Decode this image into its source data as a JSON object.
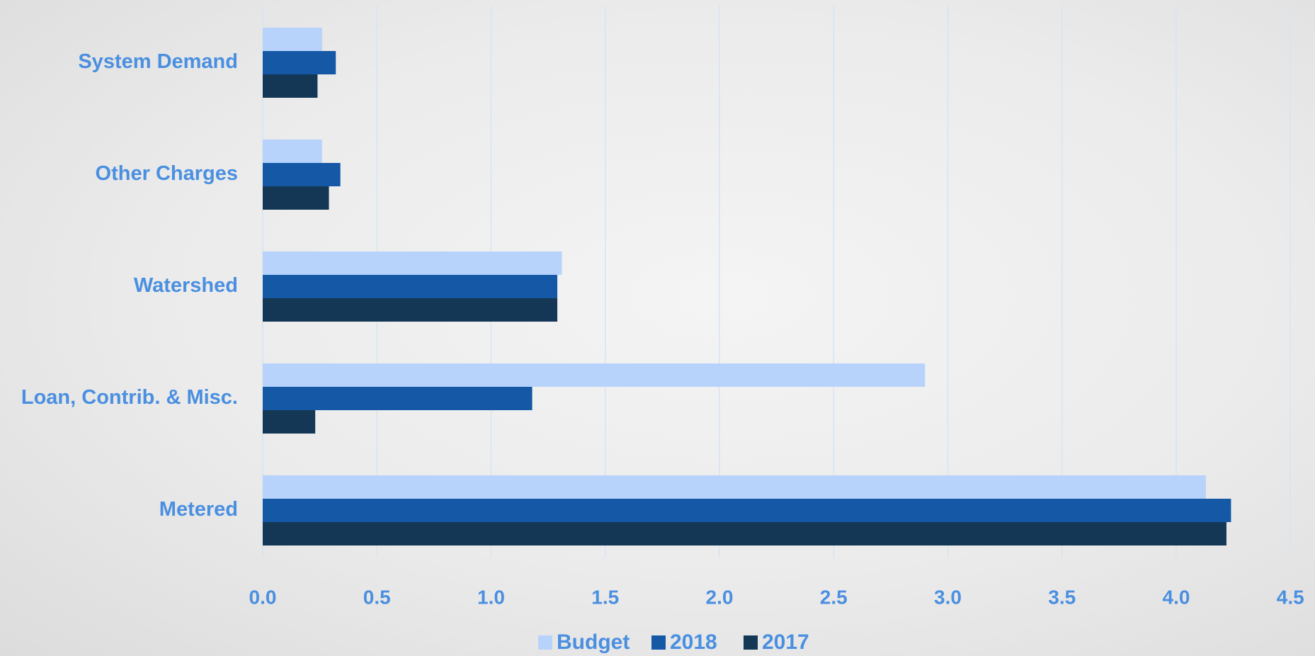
{
  "colors": {
    "label": "#4a8fe0",
    "grid": "#d6e4f2",
    "budget": "#b8d3fb",
    "y2018": "#1558a6",
    "y2017": "#133754"
  },
  "chart_data": {
    "type": "bar",
    "orientation": "horizontal",
    "categories": [
      "System Demand",
      "Other Charges",
      "Watershed",
      "Loan, Contrib. & Misc.",
      "Metered"
    ],
    "series": [
      {
        "name": "Budget",
        "color": "#b8d3fb",
        "values": [
          0.26,
          0.26,
          1.31,
          2.9,
          4.13
        ]
      },
      {
        "name": "2018",
        "color": "#1558a6",
        "values": [
          0.32,
          0.34,
          1.29,
          1.18,
          4.24
        ]
      },
      {
        "name": "2017",
        "color": "#133754",
        "values": [
          0.24,
          0.29,
          1.29,
          0.23,
          4.22
        ]
      }
    ],
    "xlim": [
      0,
      4.5
    ],
    "xticks": [
      "0.0",
      "0.5",
      "1.0",
      "1.5",
      "2.0",
      "2.5",
      "3.0",
      "3.5",
      "4.0",
      "4.5"
    ],
    "grid": "vertical",
    "legend_position": "bottom",
    "title": "",
    "xlabel": "",
    "ylabel": ""
  }
}
